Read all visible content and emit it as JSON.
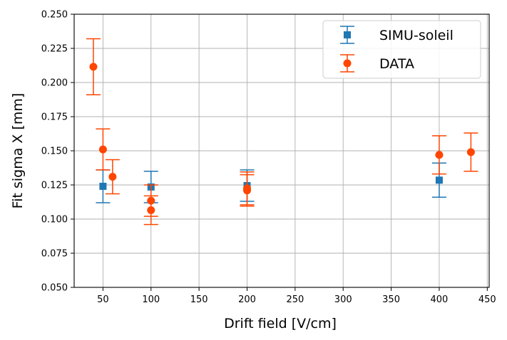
{
  "chart_data": {
    "type": "scatter",
    "title": "",
    "xlabel": "Drift field [V/cm]",
    "ylabel": "Fit sigma X [mm]",
    "xlim": [
      20,
      452
    ],
    "ylim": [
      0.05,
      0.25
    ],
    "xticks": [
      50,
      100,
      150,
      200,
      250,
      300,
      350,
      400,
      450
    ],
    "yticks": [
      0.05,
      0.075,
      0.1,
      0.125,
      0.15,
      0.175,
      0.2,
      0.225,
      0.25
    ],
    "xtick_labels": [
      "50",
      "100",
      "150",
      "200",
      "250",
      "300",
      "350",
      "400",
      "450"
    ],
    "ytick_labels": [
      "0.050",
      "0.075",
      "0.100",
      "0.125",
      "0.150",
      "0.175",
      "0.200",
      "0.225",
      "0.250"
    ],
    "grid": true,
    "legend_position": "top-right",
    "series": [
      {
        "name": "SIMU-soleil",
        "marker": "square",
        "color": "#1f77b4",
        "points": [
          {
            "x": 50,
            "y": 0.124,
            "err": 0.012
          },
          {
            "x": 100,
            "y": 0.1235,
            "err": 0.0115
          },
          {
            "x": 200,
            "y": 0.1245,
            "err": 0.0115
          },
          {
            "x": 400,
            "y": 0.1285,
            "err": 0.0125
          }
        ]
      },
      {
        "name": "DATA",
        "marker": "circle",
        "color": "#ff4500",
        "points": [
          {
            "x": 40,
            "y": 0.2115,
            "err": 0.0205
          },
          {
            "x": 50,
            "y": 0.151,
            "err": 0.015
          },
          {
            "x": 60,
            "y": 0.131,
            "err": 0.0125
          },
          {
            "x": 100,
            "y": 0.1135,
            "err": 0.0115
          },
          {
            "x": 100,
            "y": 0.1065,
            "err": 0.0105
          },
          {
            "x": 200,
            "y": 0.1225,
            "err": 0.012
          },
          {
            "x": 200,
            "y": 0.121,
            "err": 0.0115
          },
          {
            "x": 400,
            "y": 0.147,
            "err": 0.014
          },
          {
            "x": 433,
            "y": 0.149,
            "err": 0.014
          }
        ]
      }
    ]
  }
}
